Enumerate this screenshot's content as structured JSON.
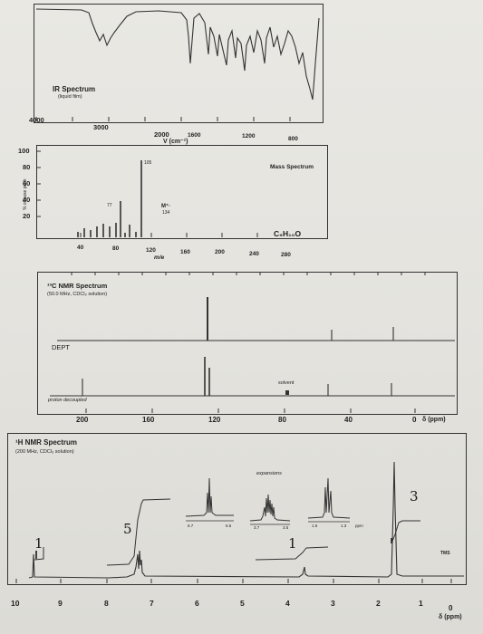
{
  "ir": {
    "title": "IR Spectrum",
    "subtitle": "(liquid film)",
    "ticks": [
      "4000",
      "3000",
      "2000",
      "1600",
      "1200",
      "800"
    ],
    "axis_label": "V (cm⁻¹)"
  },
  "ms": {
    "title": "Mass Spectrum",
    "y_ticks": [
      "100",
      "80",
      "60",
      "40",
      "20"
    ],
    "y_label": "% of base peak",
    "x_ticks": [
      "40",
      "80",
      "120",
      "160",
      "200",
      "240",
      "280"
    ],
    "x_label": "m/e",
    "peak_labels": {
      "base": "105",
      "p77": "77",
      "mplus": "M⁺·",
      "m134": "134"
    },
    "formula": "C₉H₁₀O"
  },
  "c13": {
    "title": "¹³C NMR Spectrum",
    "subtitle": "(50.0 MHz, CDCl₃ solution)",
    "dept_label": "DEPT",
    "solvent_label": "solvent",
    "decoupled_label": "proton decoupled",
    "x_ticks": [
      "200",
      "160",
      "120",
      "80",
      "40",
      "0",
      "δ (ppm)"
    ]
  },
  "h1": {
    "title": "¹H NMR Spectrum",
    "subtitle": "(200 MHz, CDCl₃ solution)",
    "expansions_label": "expansions",
    "exp_ticks": [
      "6.7",
      "6.5",
      "3.7",
      "3.5",
      "1.5",
      "1.3",
      "ppm"
    ],
    "tms_label": "TMS",
    "x_ticks": [
      "10",
      "9",
      "8",
      "7",
      "6",
      "5",
      "4",
      "3",
      "2",
      "1",
      "0"
    ],
    "x_unit": "δ (ppm)",
    "handwritten": [
      "1",
      "5",
      "1",
      "3"
    ]
  }
}
